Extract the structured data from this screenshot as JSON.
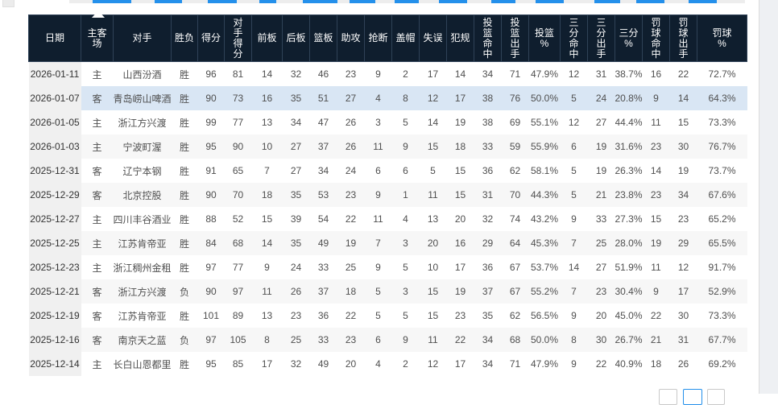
{
  "page": {
    "accent_blue": "#2490eb",
    "header_bg": "#0f1e2e",
    "highlight_row_bg": "#d9e6f4",
    "date_column_bg": "#f0f0f0",
    "alt_row_bg": "#f7f7f7"
  },
  "table": {
    "highlighted_row_index": 1,
    "columns": [
      {
        "key": "date",
        "label": "日期",
        "lines": [
          "日期"
        ]
      },
      {
        "key": "home-away",
        "label": "主客场",
        "lines": [
          "主客",
          "场"
        ]
      },
      {
        "key": "opponent",
        "label": "对手",
        "lines": [
          "对手"
        ]
      },
      {
        "key": "result",
        "label": "胜负",
        "lines": [
          "胜负"
        ]
      },
      {
        "key": "points",
        "label": "得分",
        "lines": [
          "得分"
        ]
      },
      {
        "key": "opp-points",
        "label": "对手得分",
        "lines": [
          "对",
          "手",
          "得",
          "分"
        ]
      },
      {
        "key": "off-reb",
        "label": "前板",
        "lines": [
          "前板"
        ]
      },
      {
        "key": "def-reb",
        "label": "后板",
        "lines": [
          "后板"
        ]
      },
      {
        "key": "reb",
        "label": "篮板",
        "lines": [
          "篮板"
        ]
      },
      {
        "key": "ast",
        "label": "助攻",
        "lines": [
          "助攻"
        ]
      },
      {
        "key": "stl",
        "label": "抢断",
        "lines": [
          "抢断"
        ]
      },
      {
        "key": "blk",
        "label": "盖帽",
        "lines": [
          "盖帽"
        ]
      },
      {
        "key": "tov",
        "label": "失误",
        "lines": [
          "失误"
        ]
      },
      {
        "key": "foul",
        "label": "犯规",
        "lines": [
          "犯规"
        ]
      },
      {
        "key": "fgm",
        "label": "投篮命中",
        "lines": [
          "投",
          "篮",
          "命",
          "中"
        ]
      },
      {
        "key": "fga",
        "label": "投篮出手",
        "lines": [
          "投",
          "篮",
          "出",
          "手"
        ]
      },
      {
        "key": "fg-pct",
        "label": "投篮%",
        "lines": [
          "投篮",
          "%"
        ]
      },
      {
        "key": "3pm",
        "label": "三分命中",
        "lines": [
          "三",
          "分",
          "命",
          "中"
        ]
      },
      {
        "key": "3pa",
        "label": "三分出手",
        "lines": [
          "三",
          "分",
          "出",
          "手"
        ]
      },
      {
        "key": "3p-pct",
        "label": "三分%",
        "lines": [
          "三分",
          "%"
        ]
      },
      {
        "key": "ftm",
        "label": "罚球命中",
        "lines": [
          "罚",
          "球",
          "命",
          "中"
        ]
      },
      {
        "key": "fta",
        "label": "罚球出手",
        "lines": [
          "罚",
          "球",
          "出",
          "手"
        ]
      },
      {
        "key": "ft-pct",
        "label": "罚球%",
        "lines": [
          "罚球",
          "%"
        ]
      }
    ],
    "rows": [
      [
        "2026-01-11",
        "主",
        "山西汾酒",
        "胜",
        "96",
        "81",
        "14",
        "32",
        "46",
        "23",
        "9",
        "2",
        "17",
        "14",
        "34",
        "71",
        "47.9%",
        "12",
        "31",
        "38.7%",
        "16",
        "22",
        "72.7%"
      ],
      [
        "2026-01-07",
        "客",
        "青岛崂山啤酒",
        "胜",
        "90",
        "73",
        "16",
        "35",
        "51",
        "27",
        "4",
        "8",
        "12",
        "17",
        "38",
        "76",
        "50.0%",
        "5",
        "24",
        "20.8%",
        "9",
        "14",
        "64.3%"
      ],
      [
        "2026-01-05",
        "主",
        "浙江方兴渡",
        "胜",
        "99",
        "77",
        "13",
        "34",
        "47",
        "26",
        "3",
        "5",
        "14",
        "19",
        "38",
        "69",
        "55.1%",
        "12",
        "27",
        "44.4%",
        "11",
        "15",
        "73.3%"
      ],
      [
        "2026-01-03",
        "主",
        "宁波町渥",
        "胜",
        "95",
        "90",
        "10",
        "27",
        "37",
        "26",
        "11",
        "9",
        "15",
        "18",
        "33",
        "59",
        "55.9%",
        "6",
        "19",
        "31.6%",
        "23",
        "30",
        "76.7%"
      ],
      [
        "2025-12-31",
        "客",
        "辽宁本钢",
        "胜",
        "91",
        "65",
        "7",
        "27",
        "34",
        "24",
        "6",
        "6",
        "5",
        "15",
        "36",
        "62",
        "58.1%",
        "5",
        "19",
        "26.3%",
        "14",
        "19",
        "73.7%"
      ],
      [
        "2025-12-29",
        "客",
        "北京控股",
        "胜",
        "90",
        "70",
        "18",
        "35",
        "53",
        "23",
        "9",
        "1",
        "11",
        "15",
        "31",
        "70",
        "44.3%",
        "5",
        "21",
        "23.8%",
        "23",
        "34",
        "67.6%"
      ],
      [
        "2025-12-27",
        "主",
        "四川丰谷酒业",
        "胜",
        "88",
        "52",
        "15",
        "39",
        "54",
        "22",
        "11",
        "4",
        "13",
        "20",
        "32",
        "74",
        "43.2%",
        "9",
        "33",
        "27.3%",
        "15",
        "23",
        "65.2%"
      ],
      [
        "2025-12-25",
        "主",
        "江苏肯帝亚",
        "胜",
        "84",
        "68",
        "14",
        "35",
        "49",
        "19",
        "7",
        "3",
        "20",
        "16",
        "29",
        "64",
        "45.3%",
        "7",
        "25",
        "28.0%",
        "19",
        "29",
        "65.5%"
      ],
      [
        "2025-12-23",
        "主",
        "浙江稠州金租",
        "胜",
        "97",
        "77",
        "9",
        "24",
        "33",
        "25",
        "9",
        "5",
        "10",
        "17",
        "36",
        "67",
        "53.7%",
        "14",
        "27",
        "51.9%",
        "11",
        "12",
        "91.7%"
      ],
      [
        "2025-12-21",
        "客",
        "浙江方兴渡",
        "负",
        "90",
        "97",
        "11",
        "26",
        "37",
        "18",
        "5",
        "3",
        "15",
        "19",
        "37",
        "67",
        "55.2%",
        "7",
        "23",
        "30.4%",
        "9",
        "17",
        "52.9%"
      ],
      [
        "2025-12-19",
        "客",
        "江苏肯帝亚",
        "胜",
        "101",
        "89",
        "13",
        "23",
        "36",
        "22",
        "5",
        "5",
        "15",
        "23",
        "35",
        "62",
        "56.5%",
        "9",
        "20",
        "45.0%",
        "22",
        "30",
        "73.3%"
      ],
      [
        "2025-12-16",
        "客",
        "南京天之蓝",
        "负",
        "97",
        "105",
        "8",
        "25",
        "33",
        "23",
        "6",
        "9",
        "11",
        "22",
        "34",
        "68",
        "50.0%",
        "8",
        "30",
        "26.7%",
        "21",
        "31",
        "67.7%"
      ],
      [
        "2025-12-14",
        "主",
        "长白山恩都里",
        "胜",
        "95",
        "85",
        "17",
        "32",
        "49",
        "20",
        "4",
        "2",
        "12",
        "17",
        "34",
        "71",
        "47.9%",
        "9",
        "22",
        "40.9%",
        "18",
        "26",
        "69.2%"
      ]
    ]
  },
  "pagination": {
    "visible_button_count": 3,
    "active_button_index": 1
  }
}
